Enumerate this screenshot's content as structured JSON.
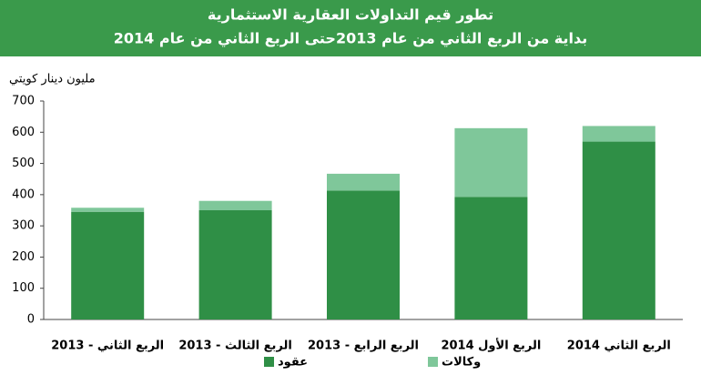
{
  "chart_data": {
    "type": "bar",
    "stacked": true,
    "title": "تطور قيم التداولات العقارية الاستثمارية",
    "subtitle": "بداية من الربع الثاني من عام  2013حتى الربع الثاني من عام  2014",
    "y_label": "مليون دينار كويتي",
    "categories": [
      "الربع الثاني  - 2013",
      "الربع الثالث  - 2013",
      "الربع الرابع  - 2013",
      "الربع الأول 2014",
      "الربع الثاني 2014"
    ],
    "series": [
      {
        "name": "عقود",
        "color": "#2f8f46",
        "values": [
          345,
          350,
          413,
          393,
          570
        ]
      },
      {
        "name": "وكالات",
        "color": "#7fc79a",
        "values": [
          13,
          30,
          54,
          220,
          50
        ]
      }
    ],
    "ylim": [
      0,
      700
    ],
    "yticks": [
      0,
      100,
      200,
      300,
      400,
      500,
      600,
      700
    ],
    "grid": false
  }
}
